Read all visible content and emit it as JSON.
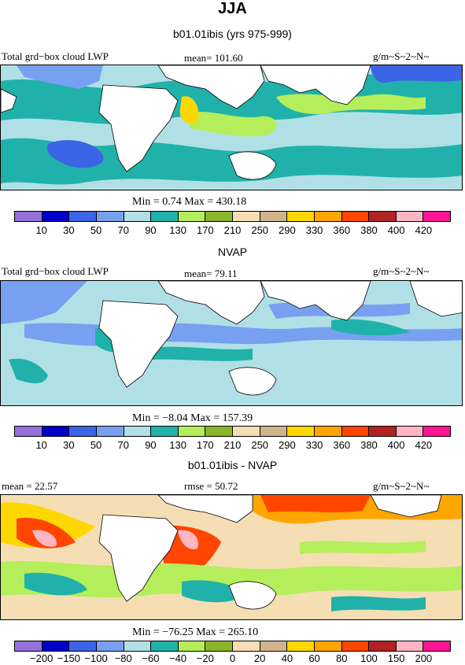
{
  "header": {
    "season": "JJA",
    "subtitle": "b01.01ibis (yrs 975-999)"
  },
  "panel1": {
    "field_label": "Total grd−box cloud LWP",
    "mean_label": "mean=  101.60",
    "units": "g/m~S~2~N~",
    "minmax": "Min =   0.74  Max =  430.18"
  },
  "panel2": {
    "title": "NVAP",
    "field_label": "Total grd−box cloud LWP",
    "mean_label": "mean=  79.11",
    "units": "g/m~S~2~N~",
    "minmax": "Min =  −8.04  Max =  157.39"
  },
  "panel3": {
    "title": "b01.01ibis - NVAP",
    "mean_label": "mean =  22.57",
    "rmse_label": "rmse =  50.72",
    "units": "g/m~S~2~N~",
    "minmax": "Min =  −76.25  Max =  265.10"
  },
  "colorbar_abs": {
    "colors": [
      "#9370db",
      "#0000c8",
      "#3c64e6",
      "#78a0f0",
      "#b0e0e6",
      "#20b2aa",
      "#b4ee5a",
      "#8cb428",
      "#f5deb3",
      "#d2b48c",
      "#ffd700",
      "#ffa500",
      "#ff4500",
      "#b22222",
      "#ffb6c1",
      "#ff1493"
    ],
    "ticks": [
      "10",
      "30",
      "50",
      "70",
      "90",
      "130",
      "170",
      "210",
      "250",
      "290",
      "330",
      "360",
      "380",
      "400",
      "420"
    ]
  },
  "colorbar_diff": {
    "colors": [
      "#9370db",
      "#0000c8",
      "#3c64e6",
      "#78a0f0",
      "#b0e0e6",
      "#20b2aa",
      "#b4ee5a",
      "#8cb428",
      "#f5deb3",
      "#d2b48c",
      "#ffd700",
      "#ffa500",
      "#ff4500",
      "#b22222",
      "#ffb6c1",
      "#ff1493"
    ],
    "ticks": [
      "−200",
      "−150",
      "−100",
      "−80",
      "−60",
      "−40",
      "−20",
      "0",
      "20",
      "40",
      "60",
      "80",
      "100",
      "150",
      "200"
    ]
  }
}
